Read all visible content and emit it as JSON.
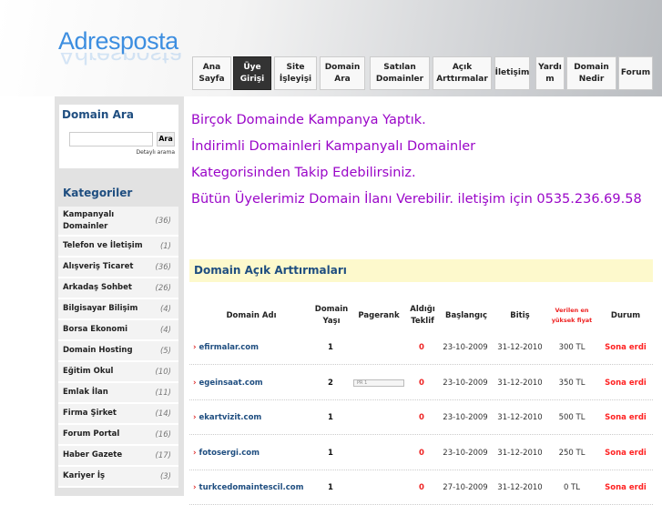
{
  "logo": "Adresposta",
  "nav": [
    {
      "l1": "Ana",
      "l2": "Sayfa"
    },
    {
      "l1": "Üye",
      "l2": "Girişi",
      "active": true
    },
    {
      "l1": "Site",
      "l2": "İşleyişi"
    },
    {
      "l1": "Domain",
      "l2": "Ara"
    },
    {
      "l1": "Satılan",
      "l2": "Domainler"
    },
    {
      "l1": "Açık",
      "l2": "Arttırmalar"
    },
    {
      "l1": "İletişim",
      "l2": ""
    },
    {
      "l1": "Yardı",
      "l2": "m"
    },
    {
      "l1": "Domain",
      "l2": "Nedir"
    },
    {
      "l1": "Forum",
      "l2": ""
    }
  ],
  "search": {
    "title": "Domain Ara",
    "value": "",
    "button": "Ara",
    "detail": "Detaylı arama"
  },
  "categories_title": "Kategoriler",
  "categories": [
    {
      "name": "Kampanyalı Domainler",
      "count": "(36)"
    },
    {
      "name": "Telefon ve İletişim",
      "count": "(1)"
    },
    {
      "name": "Alışveriş Ticaret",
      "count": "(36)"
    },
    {
      "name": "Arkadaş Sohbet",
      "count": "(26)"
    },
    {
      "name": "Bilgisayar Bilişim",
      "count": "(4)"
    },
    {
      "name": "Borsa Ekonomi",
      "count": "(4)"
    },
    {
      "name": "Domain Hosting",
      "count": "(5)"
    },
    {
      "name": "Eğitim Okul",
      "count": "(10)"
    },
    {
      "name": "Emlak İlan",
      "count": "(11)"
    },
    {
      "name": "Firma Şirket",
      "count": "(14)"
    },
    {
      "name": "Forum Portal",
      "count": "(16)"
    },
    {
      "name": "Haber Gazete",
      "count": "(17)"
    },
    {
      "name": "Kariyer İş",
      "count": "(3)"
    }
  ],
  "promo": [
    "Birçok Domainde Kampanya Yaptık.",
    "İndirimli Domainleri Kampanyalı Domainler",
    "Kategorisinden Takip Edebilirsiniz.",
    "Bütün Üyelerimiz Domain İlanı Verebilir. iletişim için 0535.236.69.58"
  ],
  "auctions": {
    "title": "Domain Açık Arttırmaları",
    "headers": {
      "domain": "Domain Adı",
      "age1": "Domain",
      "age2": "Yaşı",
      "pagerank": "Pagerank",
      "bid1": "Aldığı",
      "bid2": "Teklif",
      "start": "Başlangıç",
      "end": "Bitiş",
      "price1": "Verilen en",
      "price2": "yüksek fiyat",
      "status": "Durum"
    },
    "rows": [
      {
        "domain": "efirmalar.com",
        "age": "1",
        "pagerank": "",
        "bids": "0",
        "start": "23-10-2009",
        "end": "31-12-2010",
        "price": "300 TL",
        "status": "Sona erdi"
      },
      {
        "domain": "egeinsaat.com",
        "age": "2",
        "pagerank": "PR 1",
        "bids": "0",
        "start": "23-10-2009",
        "end": "31-12-2010",
        "price": "350 TL",
        "status": "Sona erdi"
      },
      {
        "domain": "ekartvizit.com",
        "age": "1",
        "pagerank": "",
        "bids": "0",
        "start": "23-10-2009",
        "end": "31-12-2010",
        "price": "500 TL",
        "status": "Sona erdi"
      },
      {
        "domain": "fotosergi.com",
        "age": "1",
        "pagerank": "",
        "bids": "0",
        "start": "23-10-2009",
        "end": "31-12-2010",
        "price": "250 TL",
        "status": "Sona erdi"
      },
      {
        "domain": "turkcedomaintescil.com",
        "age": "1",
        "pagerank": "",
        "bids": "0",
        "start": "27-10-2009",
        "end": "31-12-2010",
        "price": "0 TL",
        "status": "Sona erdi"
      }
    ]
  }
}
